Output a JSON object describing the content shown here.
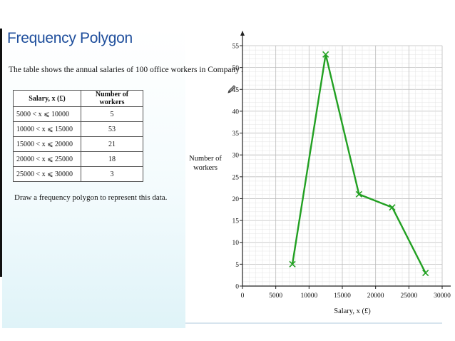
{
  "slide": {
    "title": "Frequency Polygon"
  },
  "intro_text": "The table shows the annual salaries of 100 office workers in Company A.",
  "table": {
    "headers": [
      "Salary, x (£)",
      "Number of workers"
    ],
    "rows": [
      [
        "5000 < x ⩽ 10000",
        "5"
      ],
      [
        "10000 < x ⩽ 15000",
        "53"
      ],
      [
        "15000 < x ⩽ 20000",
        "21"
      ],
      [
        "20000 < x ⩽ 25000",
        "18"
      ],
      [
        "25000 < x ⩽ 30000",
        "3"
      ]
    ]
  },
  "task_text": "Draw a frequency polygon to represent this data.",
  "chart_data": {
    "type": "line",
    "xlabel": "Salary, x (£)",
    "ylabel_lines": [
      "Number of",
      "workers"
    ],
    "xlim": [
      0,
      30000
    ],
    "ylim": [
      0,
      55
    ],
    "xticks": [
      0,
      5000,
      10000,
      15000,
      20000,
      25000,
      30000
    ],
    "yticks": [
      0,
      5,
      10,
      15,
      20,
      25,
      30,
      35,
      40,
      45,
      50,
      55
    ],
    "grid": true,
    "series": [
      {
        "x": [
          7500,
          12500,
          17500,
          22500,
          27500
        ],
        "y": [
          5,
          53,
          21,
          18,
          3
        ],
        "marker": "x"
      }
    ],
    "colors": {
      "line": "#22a022",
      "grid_minor": "#e4e4e4",
      "grid_major": "#bdbdbd",
      "axis": "#222222"
    }
  }
}
